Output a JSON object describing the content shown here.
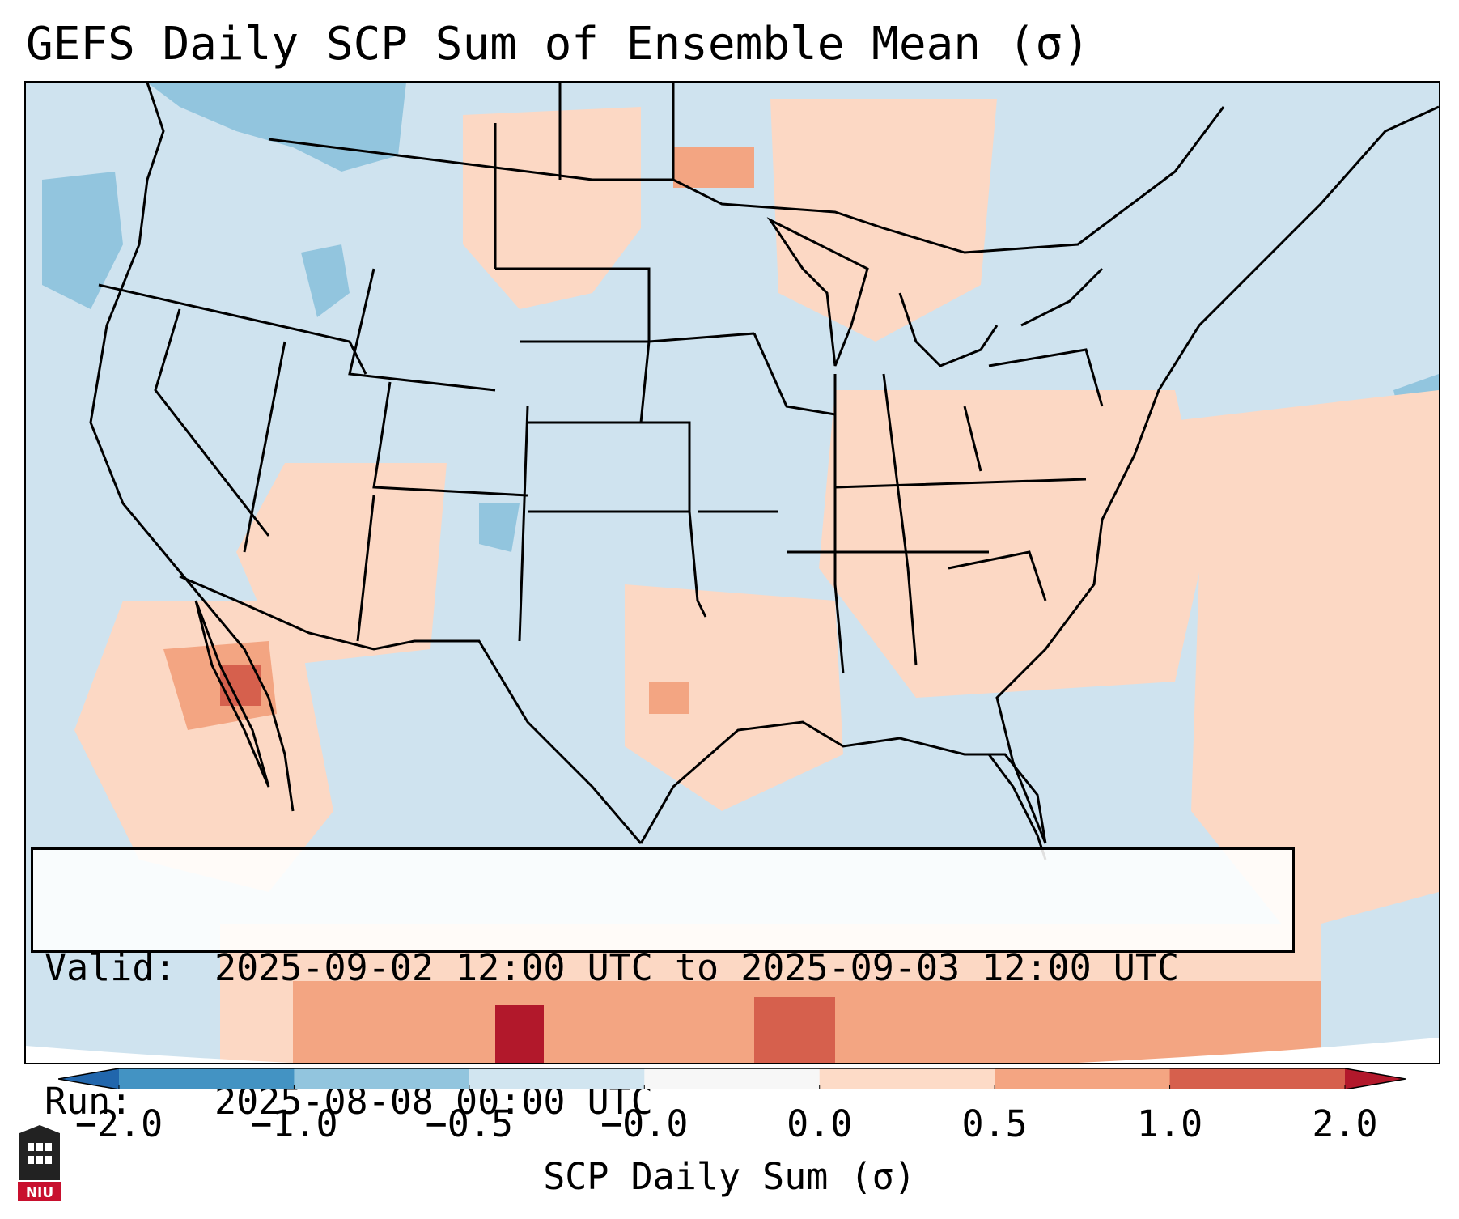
{
  "title": "GEFS Daily SCP Sum of Ensemble Mean (σ)",
  "info": {
    "valid_label": "Valid:",
    "valid_value": "2025-09-02 12:00 UTC to 2025-09-03 12:00 UTC",
    "run_label": "Run:",
    "run_value": "2025-08-08 00:00 UTC"
  },
  "colorbar": {
    "label": "SCP Daily Sum (σ)",
    "ticks": [
      "−2.0",
      "−1.0",
      "−0.5",
      "−0.0",
      "0.0",
      "0.5",
      "1.0",
      "2.0"
    ],
    "colors": [
      "#4393c3",
      "#92c5de",
      "#d1e5f0",
      "#f7f7f7",
      "#fddbc7",
      "#f4a582",
      "#d6604d"
    ],
    "extend_low_color": "#2166ac",
    "extend_high_color": "#b2182b"
  },
  "logo": {
    "text": "NIU"
  },
  "map_colors": {
    "ocean_background": "#cfe3ef",
    "light_red": "#fcd8c4",
    "medium_red": "#f3a582",
    "dark_red": "#d6604d",
    "deep_red": "#b2182b",
    "light_blue": "#92c5de",
    "outline": "#000000"
  }
}
